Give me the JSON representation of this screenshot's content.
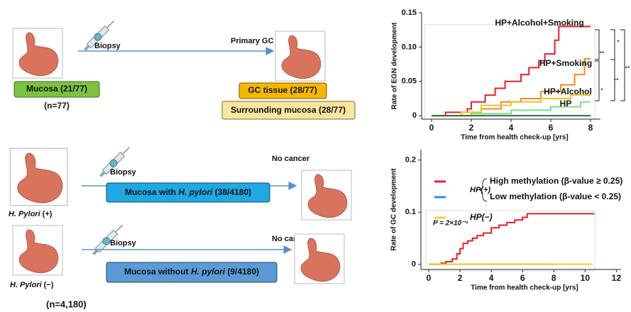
{
  "diagram": {
    "primary_gc": "Primary GC",
    "biopsy": [
      "Biopsy",
      "Biopsy",
      "Biopsy"
    ],
    "mucosa_box": "Mucosa (21/77)",
    "n_top": "(n=77)",
    "gc_tissue": "GC tissue (28/77)",
    "surrounding": "Surrounding mucosa (28/77)",
    "no_cancer": [
      "No cancer",
      "No cancer"
    ],
    "hp_pos_box": [
      "Mucosa with ",
      "H. pylori",
      " (38/4180)"
    ],
    "hp_neg_box": [
      "Mucosa without ",
      "H. pylori",
      " (9/4180)"
    ],
    "hp_pos_label": [
      "H. Pylori",
      " (+)"
    ],
    "hp_neg_label": [
      "H. Pylori",
      " (−)"
    ],
    "n_bottom": "(n=4,180)"
  },
  "chart_data": [
    {
      "type": "step",
      "xlabel": "Time from health check-up [yrs]",
      "ylabel": "Rate of EGN development",
      "xlim": [
        -0.5,
        8.5
      ],
      "ylim": [
        -0.005,
        0.15
      ],
      "xticks": [
        0,
        2,
        4,
        6,
        8
      ],
      "yticks": [
        0,
        0.05,
        {
          "value": 0.1,
          "label": "0.10"
        },
        0.15
      ],
      "annotations": [
        "**",
        "*",
        "**",
        "*",
        "**"
      ],
      "series": [
        {
          "name": "HP+Alcohol+Smoking",
          "color": "#e8202a",
          "x": [
            0,
            0.7,
            1.8,
            2.0,
            2.7,
            3.2,
            3.7,
            4.5,
            4.9,
            5.4,
            5.7,
            6.2,
            6.4,
            8
          ],
          "values": [
            0,
            0.005,
            0.01,
            0.02,
            0.03,
            0.04,
            0.05,
            0.06,
            0.07,
            0.08,
            0.09,
            0.11,
            0.13,
            0.13
          ]
        },
        {
          "name": "HP+Smoking",
          "color": "#f08a24",
          "x": [
            0,
            1.5,
            2.5,
            3.5,
            4.5,
            5.5,
            6.5,
            7.2,
            7.7,
            8
          ],
          "values": [
            0,
            0.005,
            0.01,
            0.02,
            0.025,
            0.035,
            0.045,
            0.06,
            0.083,
            0.083
          ]
        },
        {
          "name": "HP+Alcohol",
          "color": "#f6c21c",
          "x": [
            0,
            1.5,
            2.5,
            4,
            5.5,
            7,
            8
          ],
          "values": [
            0,
            0.005,
            0.015,
            0.02,
            0.025,
            0.03,
            0.03
          ]
        },
        {
          "name": "HP",
          "color": "#7ee07e",
          "x": [
            0,
            2,
            4,
            6,
            7.5,
            8
          ],
          "values": [
            0,
            0.003,
            0.008,
            0.013,
            0.02,
            0.02
          ]
        },
        {
          "color": "#2e6b4a",
          "x": [
            0,
            8
          ],
          "values": [
            0,
            0
          ]
        }
      ]
    },
    {
      "type": "step",
      "xlabel": "Time from health check-up [yrs]",
      "ylabel": "Rate of GC development",
      "xlim": [
        -0.5,
        12.3
      ],
      "ylim": [
        -0.01,
        0.22
      ],
      "xticks": [
        0,
        2,
        4,
        6,
        8,
        10,
        12
      ],
      "yticks": [
        0,
        0.1,
        0.2
      ],
      "legend_group": "HP(+)",
      "annotations": [
        "P = 2×10⁻⁴"
      ],
      "series": [
        {
          "name": "High methylation (β-value ≥ 0.25)",
          "color": "#e8202a",
          "x": [
            0,
            0.8,
            1.1,
            1.5,
            1.8,
            2.0,
            2.2,
            2.5,
            2.8,
            3.1,
            3.5,
            4.0,
            4.5,
            5.0,
            5.5,
            6.0,
            6.3,
            10.6
          ],
          "values": [
            0,
            0.002,
            0.005,
            0.01,
            0.02,
            0.03,
            0.04,
            0.045,
            0.05,
            0.055,
            0.06,
            0.07,
            0.075,
            0.08,
            0.085,
            0.09,
            0.097,
            0.097
          ]
        },
        {
          "name": "Low methylation (β-value < 0.25)",
          "color": "#2f8fe0",
          "x": [
            0,
            8.2
          ],
          "values": [
            0,
            0
          ]
        },
        {
          "name": "HP(−)",
          "color": "#f6d21c",
          "x": [
            0,
            10.5
          ],
          "values": [
            0,
            0
          ]
        }
      ]
    }
  ]
}
